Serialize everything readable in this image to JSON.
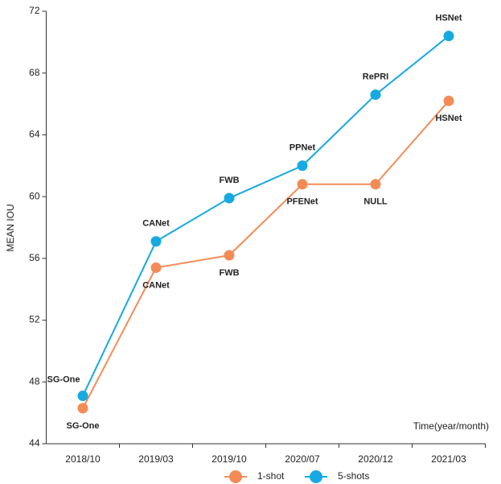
{
  "chart_data": {
    "type": "line",
    "x_label": "Time(year/month)",
    "y_label": "MEAN IOU",
    "categories": [
      "2018/10",
      "2019/03",
      "2019/10",
      "2020/07",
      "2020/12",
      "2021/03"
    ],
    "series": [
      {
        "name": "1-shot",
        "color": "#f48b57",
        "values": [
          46.3,
          55.4,
          56.2,
          60.8,
          60.8,
          66.2
        ],
        "point_labels": [
          "SG-One",
          "CANet",
          "FWB",
          "PFENet",
          "NULL",
          "HSNet"
        ]
      },
      {
        "name": "5-shots",
        "color": "#17a9e1",
        "values": [
          47.1,
          57.1,
          59.9,
          62.0,
          66.6,
          70.4
        ],
        "point_labels": [
          "SG-One",
          "CANet",
          "FWB",
          "PPNet",
          "RePRI",
          "HSNet"
        ]
      }
    ],
    "ylim": [
      44,
      72
    ],
    "yticks": [
      44,
      48,
      52,
      56,
      60,
      64,
      68,
      72
    ],
    "grid": false,
    "legend": "bottom"
  }
}
